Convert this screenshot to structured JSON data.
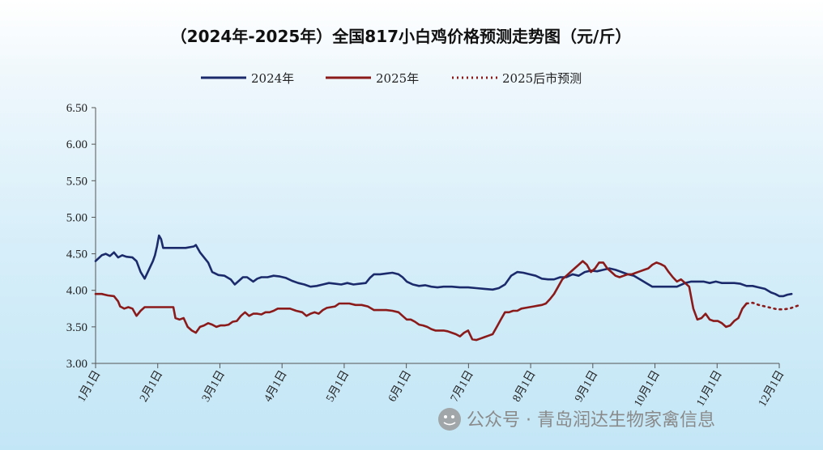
{
  "chart_data": {
    "type": "line",
    "title": "（2024年-2025年）全国817小白鸡价格预测走势图（元/斤）",
    "ylim": [
      3.0,
      6.5
    ],
    "yticks": [
      "6.50",
      "6.00",
      "5.50",
      "5.00",
      "4.50",
      "4.00",
      "3.50",
      "3.00"
    ],
    "xticks": [
      "1月1日",
      "2月1日",
      "3月1日",
      "4月1日",
      "5月1日",
      "6月1日",
      "7月1日",
      "8月1日",
      "9月1日",
      "10月1日",
      "11月1日",
      "12月1日"
    ],
    "legend_position": "top-center",
    "series": [
      {
        "name": "2024年",
        "color": "#1b2a6b",
        "style": "solid",
        "points": [
          [
            0,
            4.4
          ],
          [
            3,
            4.48
          ],
          [
            5,
            4.5
          ],
          [
            7,
            4.47
          ],
          [
            9,
            4.52
          ],
          [
            11,
            4.45
          ],
          [
            13,
            4.48
          ],
          [
            15,
            4.46
          ],
          [
            18,
            4.45
          ],
          [
            20,
            4.4
          ],
          [
            22,
            4.25
          ],
          [
            24,
            4.16
          ],
          [
            26,
            4.28
          ],
          [
            28,
            4.4
          ],
          [
            29,
            4.48
          ],
          [
            30,
            4.6
          ],
          [
            31,
            4.75
          ],
          [
            32,
            4.7
          ],
          [
            33,
            4.58
          ],
          [
            36,
            4.58
          ],
          [
            40,
            4.58
          ],
          [
            44,
            4.58
          ],
          [
            48,
            4.6
          ],
          [
            49,
            4.62
          ],
          [
            51,
            4.52
          ],
          [
            53,
            4.45
          ],
          [
            55,
            4.38
          ],
          [
            57,
            4.25
          ],
          [
            60,
            4.21
          ],
          [
            63,
            4.2
          ],
          [
            66,
            4.15
          ],
          [
            68,
            4.08
          ],
          [
            70,
            4.13
          ],
          [
            72,
            4.18
          ],
          [
            74,
            4.18
          ],
          [
            77,
            4.12
          ],
          [
            79,
            4.16
          ],
          [
            81,
            4.18
          ],
          [
            84,
            4.18
          ],
          [
            87,
            4.2
          ],
          [
            90,
            4.19
          ],
          [
            93,
            4.17
          ],
          [
            96,
            4.13
          ],
          [
            99,
            4.1
          ],
          [
            102,
            4.08
          ],
          [
            105,
            4.05
          ],
          [
            108,
            4.06
          ],
          [
            111,
            4.08
          ],
          [
            114,
            4.1
          ],
          [
            117,
            4.09
          ],
          [
            120,
            4.08
          ],
          [
            123,
            4.1
          ],
          [
            126,
            4.08
          ],
          [
            129,
            4.09
          ],
          [
            132,
            4.1
          ],
          [
            134,
            4.17
          ],
          [
            136,
            4.22
          ],
          [
            139,
            4.22
          ],
          [
            142,
            4.23
          ],
          [
            145,
            4.24
          ],
          [
            148,
            4.22
          ],
          [
            150,
            4.18
          ],
          [
            152,
            4.12
          ],
          [
            155,
            4.08
          ],
          [
            158,
            4.06
          ],
          [
            161,
            4.07
          ],
          [
            164,
            4.05
          ],
          [
            167,
            4.04
          ],
          [
            170,
            4.05
          ],
          [
            174,
            4.05
          ],
          [
            178,
            4.04
          ],
          [
            182,
            4.04
          ],
          [
            186,
            4.03
          ],
          [
            190,
            4.02
          ],
          [
            194,
            4.01
          ],
          [
            197,
            4.03
          ],
          [
            200,
            4.08
          ],
          [
            203,
            4.2
          ],
          [
            206,
            4.25
          ],
          [
            209,
            4.24
          ],
          [
            212,
            4.22
          ],
          [
            215,
            4.2
          ],
          [
            218,
            4.16
          ],
          [
            221,
            4.15
          ],
          [
            224,
            4.15
          ],
          [
            227,
            4.18
          ],
          [
            230,
            4.18
          ],
          [
            233,
            4.22
          ],
          [
            236,
            4.2
          ],
          [
            239,
            4.25
          ],
          [
            242,
            4.27
          ],
          [
            245,
            4.26
          ],
          [
            248,
            4.28
          ],
          [
            251,
            4.3
          ],
          [
            254,
            4.28
          ],
          [
            257,
            4.25
          ],
          [
            260,
            4.22
          ],
          [
            263,
            4.2
          ],
          [
            266,
            4.15
          ],
          [
            269,
            4.1
          ],
          [
            272,
            4.05
          ],
          [
            276,
            4.05
          ],
          [
            280,
            4.05
          ],
          [
            284,
            4.05
          ],
          [
            288,
            4.1
          ],
          [
            291,
            4.12
          ],
          [
            294,
            4.12
          ],
          [
            297,
            4.12
          ],
          [
            300,
            4.1
          ],
          [
            303,
            4.12
          ],
          [
            306,
            4.1
          ],
          [
            309,
            4.1
          ],
          [
            312,
            4.1
          ],
          [
            315,
            4.09
          ],
          [
            318,
            4.06
          ],
          [
            321,
            4.06
          ],
          [
            324,
            4.04
          ],
          [
            327,
            4.02
          ],
          [
            330,
            3.97
          ],
          [
            332,
            3.95
          ],
          [
            334,
            3.92
          ],
          [
            336,
            3.92
          ],
          [
            338,
            3.94
          ],
          [
            340,
            3.95
          ]
        ]
      },
      {
        "name": "2025年",
        "color": "#8b1a1a",
        "style": "solid",
        "points": [
          [
            0,
            3.95
          ],
          [
            3,
            3.95
          ],
          [
            6,
            3.93
          ],
          [
            9,
            3.92
          ],
          [
            11,
            3.85
          ],
          [
            12,
            3.78
          ],
          [
            14,
            3.75
          ],
          [
            16,
            3.77
          ],
          [
            18,
            3.75
          ],
          [
            20,
            3.65
          ],
          [
            22,
            3.72
          ],
          [
            24,
            3.77
          ],
          [
            27,
            3.77
          ],
          [
            30,
            3.77
          ],
          [
            33,
            3.77
          ],
          [
            36,
            3.77
          ],
          [
            38,
            3.77
          ],
          [
            39,
            3.62
          ],
          [
            41,
            3.6
          ],
          [
            43,
            3.62
          ],
          [
            45,
            3.5
          ],
          [
            47,
            3.45
          ],
          [
            49,
            3.42
          ],
          [
            51,
            3.5
          ],
          [
            53,
            3.52
          ],
          [
            55,
            3.55
          ],
          [
            57,
            3.53
          ],
          [
            59,
            3.5
          ],
          [
            61,
            3.52
          ],
          [
            63,
            3.52
          ],
          [
            65,
            3.53
          ],
          [
            67,
            3.57
          ],
          [
            69,
            3.58
          ],
          [
            71,
            3.65
          ],
          [
            73,
            3.7
          ],
          [
            75,
            3.65
          ],
          [
            77,
            3.68
          ],
          [
            79,
            3.68
          ],
          [
            81,
            3.67
          ],
          [
            83,
            3.7
          ],
          [
            85,
            3.7
          ],
          [
            87,
            3.72
          ],
          [
            89,
            3.75
          ],
          [
            92,
            3.75
          ],
          [
            95,
            3.75
          ],
          [
            98,
            3.72
          ],
          [
            101,
            3.7
          ],
          [
            103,
            3.65
          ],
          [
            105,
            3.68
          ],
          [
            107,
            3.7
          ],
          [
            109,
            3.68
          ],
          [
            111,
            3.73
          ],
          [
            113,
            3.76
          ],
          [
            115,
            3.77
          ],
          [
            117,
            3.78
          ],
          [
            119,
            3.82
          ],
          [
            121,
            3.82
          ],
          [
            124,
            3.82
          ],
          [
            127,
            3.8
          ],
          [
            130,
            3.8
          ],
          [
            133,
            3.78
          ],
          [
            136,
            3.73
          ],
          [
            139,
            3.73
          ],
          [
            142,
            3.73
          ],
          [
            145,
            3.72
          ],
          [
            148,
            3.7
          ],
          [
            150,
            3.65
          ],
          [
            152,
            3.6
          ],
          [
            154,
            3.6
          ],
          [
            156,
            3.57
          ],
          [
            158,
            3.53
          ],
          [
            160,
            3.52
          ],
          [
            162,
            3.5
          ],
          [
            164,
            3.47
          ],
          [
            166,
            3.45
          ],
          [
            168,
            3.45
          ],
          [
            170,
            3.45
          ],
          [
            172,
            3.44
          ],
          [
            174,
            3.42
          ],
          [
            176,
            3.4
          ],
          [
            178,
            3.37
          ],
          [
            180,
            3.42
          ],
          [
            182,
            3.45
          ],
          [
            184,
            3.33
          ],
          [
            186,
            3.32
          ],
          [
            188,
            3.34
          ],
          [
            190,
            3.36
          ],
          [
            192,
            3.38
          ],
          [
            194,
            3.4
          ],
          [
            196,
            3.5
          ],
          [
            198,
            3.6
          ],
          [
            200,
            3.7
          ],
          [
            202,
            3.7
          ],
          [
            204,
            3.72
          ],
          [
            206,
            3.72
          ],
          [
            208,
            3.75
          ],
          [
            210,
            3.76
          ],
          [
            212,
            3.77
          ],
          [
            214,
            3.78
          ],
          [
            216,
            3.79
          ],
          [
            218,
            3.8
          ],
          [
            220,
            3.82
          ],
          [
            222,
            3.88
          ],
          [
            224,
            3.95
          ],
          [
            226,
            4.05
          ],
          [
            228,
            4.15
          ],
          [
            230,
            4.2
          ],
          [
            232,
            4.25
          ],
          [
            234,
            4.3
          ],
          [
            236,
            4.35
          ],
          [
            238,
            4.4
          ],
          [
            240,
            4.35
          ],
          [
            242,
            4.25
          ],
          [
            244,
            4.3
          ],
          [
            246,
            4.38
          ],
          [
            248,
            4.38
          ],
          [
            250,
            4.3
          ],
          [
            252,
            4.25
          ],
          [
            254,
            4.2
          ],
          [
            256,
            4.18
          ],
          [
            258,
            4.2
          ],
          [
            260,
            4.22
          ],
          [
            262,
            4.22
          ],
          [
            264,
            4.24
          ],
          [
            266,
            4.26
          ],
          [
            268,
            4.28
          ],
          [
            270,
            4.3
          ],
          [
            272,
            4.35
          ],
          [
            274,
            4.38
          ],
          [
            276,
            4.36
          ],
          [
            278,
            4.33
          ],
          [
            280,
            4.25
          ],
          [
            282,
            4.18
          ],
          [
            284,
            4.12
          ],
          [
            286,
            4.15
          ],
          [
            288,
            4.1
          ],
          [
            290,
            4.05
          ],
          [
            292,
            3.75
          ],
          [
            294,
            3.6
          ],
          [
            296,
            3.62
          ],
          [
            298,
            3.68
          ],
          [
            300,
            3.6
          ],
          [
            302,
            3.58
          ],
          [
            304,
            3.58
          ],
          [
            306,
            3.55
          ],
          [
            308,
            3.5
          ],
          [
            310,
            3.52
          ],
          [
            312,
            3.58
          ],
          [
            314,
            3.62
          ],
          [
            316,
            3.75
          ],
          [
            318,
            3.82
          ]
        ]
      },
      {
        "name": "2025后市预测",
        "color": "#8b1a1a",
        "style": "dotted",
        "points": [
          [
            318,
            3.82
          ],
          [
            321,
            3.83
          ],
          [
            324,
            3.8
          ],
          [
            327,
            3.78
          ],
          [
            330,
            3.76
          ],
          [
            333,
            3.74
          ],
          [
            336,
            3.74
          ],
          [
            339,
            3.75
          ],
          [
            342,
            3.78
          ],
          [
            344,
            3.8
          ]
        ]
      }
    ]
  },
  "watermark": {
    "icon": "wechat-icon",
    "text": "公众号 · 青岛润达生物家禽信息"
  }
}
